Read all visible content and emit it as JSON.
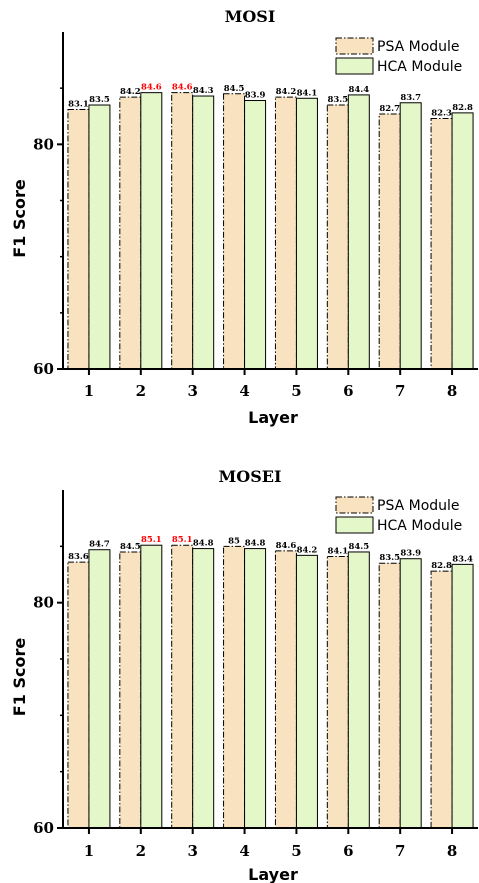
{
  "colors": {
    "psa_fill": "#f9e2bf",
    "hca_fill": "#e3f7c8",
    "highlight": "#ff0000",
    "text": "#000000"
  },
  "chart_data": [
    {
      "type": "bar",
      "title": "MOSI",
      "xlabel": "Layer",
      "ylabel": "F1 Score",
      "ylim": [
        60,
        90
      ],
      "yticks": [
        60,
        80
      ],
      "categories": [
        "1",
        "2",
        "3",
        "4",
        "5",
        "6",
        "7",
        "8"
      ],
      "legend_position": "top-right",
      "series": [
        {
          "name": "PSA Module",
          "values": [
            83.1,
            84.2,
            84.6,
            84.5,
            84.2,
            83.5,
            82.7,
            82.3
          ],
          "labels": [
            "83.1",
            "84.2",
            "84.6",
            "84.5",
            "84.2",
            "83.5",
            "82.7",
            "82.3"
          ]
        },
        {
          "name": "HCA Module",
          "values": [
            83.5,
            84.6,
            84.3,
            83.9,
            84.1,
            84.4,
            83.7,
            82.8
          ],
          "labels": [
            "83.5",
            "84.6",
            "84.3",
            "83.9",
            "84.1",
            "84.4",
            "83.7",
            "82.8"
          ]
        }
      ],
      "highlighted": [
        {
          "series": 1,
          "index": 1
        },
        {
          "series": 0,
          "index": 2
        }
      ]
    },
    {
      "type": "bar",
      "title": "MOSEI",
      "xlabel": "Layer",
      "ylabel": "F1 Score",
      "ylim": [
        60,
        90
      ],
      "yticks": [
        60,
        80
      ],
      "categories": [
        "1",
        "2",
        "3",
        "4",
        "5",
        "6",
        "7",
        "8"
      ],
      "legend_position": "top-right",
      "series": [
        {
          "name": "PSA Module",
          "values": [
            83.6,
            84.5,
            85.1,
            85.0,
            84.6,
            84.1,
            83.5,
            82.8
          ],
          "labels": [
            "83.6",
            "84.5",
            "85.1",
            "85",
            "84.6",
            "84.1",
            "83.5",
            "82.8"
          ]
        },
        {
          "name": "HCA Module",
          "values": [
            84.7,
            85.1,
            84.8,
            84.8,
            84.2,
            84.5,
            83.9,
            83.4
          ],
          "labels": [
            "84.7",
            "85.1",
            "84.8",
            "84.8",
            "84.2",
            "84.5",
            "83.9",
            "83.4"
          ]
        }
      ],
      "highlighted": [
        {
          "series": 1,
          "index": 1
        },
        {
          "series": 0,
          "index": 2
        }
      ]
    }
  ]
}
